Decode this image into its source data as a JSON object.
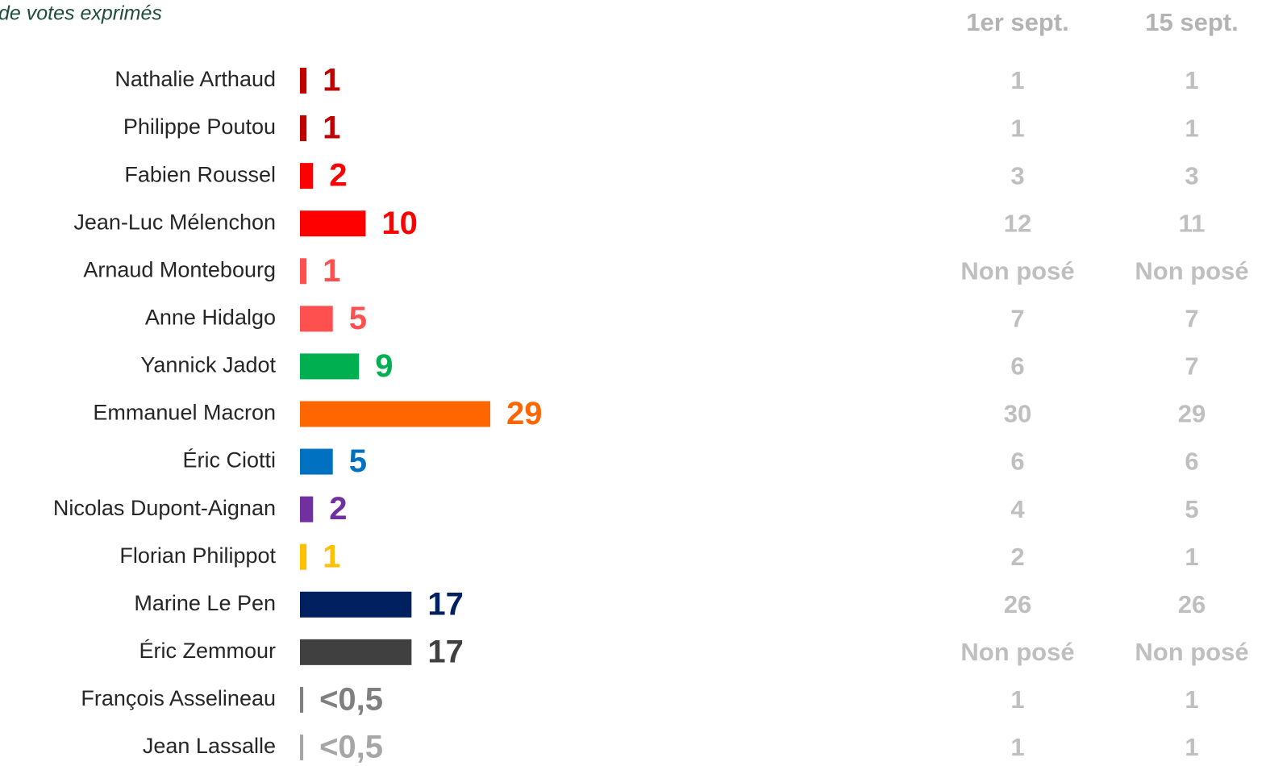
{
  "chart_data": {
    "type": "bar",
    "orientation": "horizontal",
    "subtitle": "de votes exprimés",
    "categories": [
      "Nathalie Arthaud",
      "Philippe Poutou",
      "Fabien Roussel",
      "Jean-Luc Mélenchon",
      "Arnaud Montebourg",
      "Anne Hidalgo",
      "Yannick Jadot",
      "Emmanuel Macron",
      "Éric Ciotti",
      "Nicolas Dupont-Aignan",
      "Florian Philippot",
      "Marine Le Pen",
      "Éric Zemmour",
      "François Asselineau",
      "Jean Lassalle"
    ],
    "values": [
      1,
      1,
      2,
      10,
      1,
      5,
      9,
      29,
      5,
      2,
      1,
      17,
      17,
      0.5,
      0.5
    ],
    "value_labels": [
      "1",
      "1",
      "2",
      "10",
      "1",
      "5",
      "9",
      "29",
      "5",
      "2",
      "1",
      "17",
      "17",
      "<0,5",
      "<0,5"
    ],
    "colors": [
      "#c00000",
      "#c00000",
      "#ff0000",
      "#ff0000",
      "#ff5050",
      "#ff5050",
      "#00b050",
      "#ff6600",
      "#0070c0",
      "#7030a0",
      "#ffc000",
      "#002060",
      "#404040",
      "#7f7f7f",
      "#a6a6a6"
    ],
    "previous": {
      "headers": [
        "1er sept.",
        "15 sept."
      ],
      "columns": [
        [
          1,
          1,
          3,
          12,
          "Non posé",
          7,
          6,
          30,
          6,
          4,
          2,
          26,
          "Non posé",
          1,
          1
        ],
        [
          1,
          1,
          3,
          11,
          "Non posé",
          7,
          7,
          29,
          6,
          5,
          1,
          26,
          "Non posé",
          1,
          1
        ]
      ]
    }
  }
}
